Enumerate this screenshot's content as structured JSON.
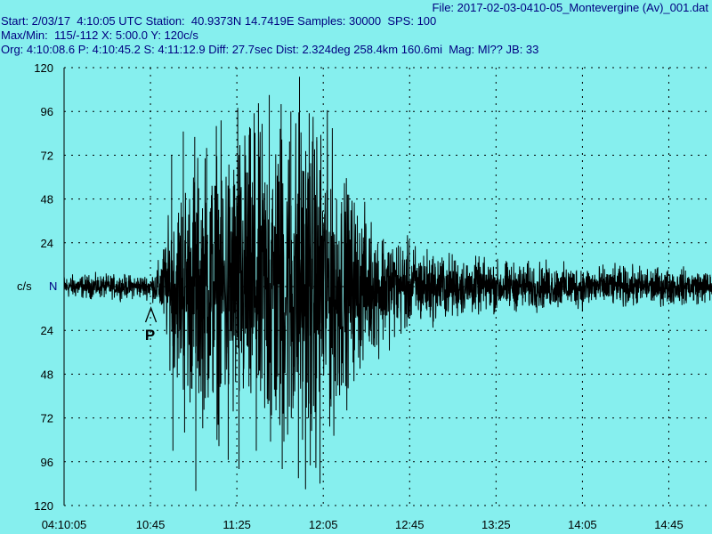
{
  "header": {
    "file": "File: 2017-02-03-0410-05_Montevergine (Av)_001.dat",
    "line1": "Start: 2/03/17  4:10:05 UTC Station:  40.9373N 14.7419E Samples: 30000  SPS: 100",
    "line2": "Max/Min:  115/-112 X: 5:00.0 Y: 120c/s",
    "line3": "Org: 4:10:08.6 P: 4:10:45.2 S: 4:11:12.9 Diff: 27.7sec Dist: 2.324deg 258.4km 160.6mi  Mag: Ml?? JB: 33"
  },
  "colors": {
    "background": "#86efee",
    "trace": "#000000",
    "grid": "#000000",
    "header_text": "#000080"
  },
  "chart_data": {
    "type": "line",
    "title": "",
    "xlabel": "",
    "ylabel": "c/s",
    "channel_label": "N",
    "y_ticks_top": [
      "120",
      "96",
      "72",
      "48",
      "24"
    ],
    "y_ticks_bottom": [
      "24",
      "48",
      "72",
      "96",
      "120"
    ],
    "ylim": [
      -120,
      120
    ],
    "x_ticks": [
      "04:10:05",
      "10:45",
      "11:25",
      "12:05",
      "12:45",
      "13:25",
      "14:05",
      "14:45"
    ],
    "x_tick_seconds": [
      0,
      40,
      80,
      120,
      160,
      200,
      240,
      280
    ],
    "xlim_seconds": [
      0,
      300
    ],
    "grid": true,
    "max": 115,
    "min": -112,
    "sps": 100,
    "pick": {
      "label": "P",
      "time_seconds": 40.2
    },
    "envelope": {
      "t": [
        0,
        40,
        43,
        46,
        50,
        55,
        60,
        65,
        72,
        80,
        90,
        100,
        110,
        115,
        120,
        125,
        130,
        135,
        140,
        150,
        160,
        170,
        180,
        190,
        200,
        210,
        220,
        230,
        240,
        250,
        260,
        270,
        280,
        290,
        300
      ],
      "amp": [
        6,
        6,
        10,
        22,
        40,
        55,
        62,
        65,
        70,
        75,
        80,
        85,
        90,
        85,
        80,
        70,
        55,
        45,
        36,
        28,
        22,
        18,
        16,
        14,
        13,
        12,
        12,
        11,
        11,
        10,
        10,
        10,
        9,
        9,
        8
      ]
    },
    "spikes": [
      {
        "t": 49.8,
        "v": 72
      },
      {
        "t": 50.4,
        "v": -90
      },
      {
        "t": 55.2,
        "v": 85
      },
      {
        "t": 55.8,
        "v": -80
      },
      {
        "t": 60.5,
        "v": 82
      },
      {
        "t": 61.0,
        "v": -112
      },
      {
        "t": 66.0,
        "v": 76
      },
      {
        "t": 70.5,
        "v": 88
      },
      {
        "t": 71.2,
        "v": -70
      },
      {
        "t": 76.0,
        "v": -95
      },
      {
        "t": 80.4,
        "v": 98
      },
      {
        "t": 81.0,
        "v": -100
      },
      {
        "t": 84.0,
        "v": 72
      },
      {
        "t": 88.0,
        "v": 95
      },
      {
        "t": 89.0,
        "v": -90
      },
      {
        "t": 95.0,
        "v": 105
      },
      {
        "t": 95.6,
        "v": -85
      },
      {
        "t": 100.5,
        "v": 100
      },
      {
        "t": 101.0,
        "v": -100
      },
      {
        "t": 105.0,
        "v": 96
      },
      {
        "t": 108.5,
        "v": -105
      },
      {
        "t": 109.0,
        "v": 115
      },
      {
        "t": 113.5,
        "v": 95
      },
      {
        "t": 114.0,
        "v": -98
      },
      {
        "t": 117.0,
        "v": 80
      },
      {
        "t": 118.5,
        "v": -108
      },
      {
        "t": 122.0,
        "v": 72
      },
      {
        "t": 126.0,
        "v": -60
      },
      {
        "t": 131.5,
        "v": -55
      }
    ]
  }
}
